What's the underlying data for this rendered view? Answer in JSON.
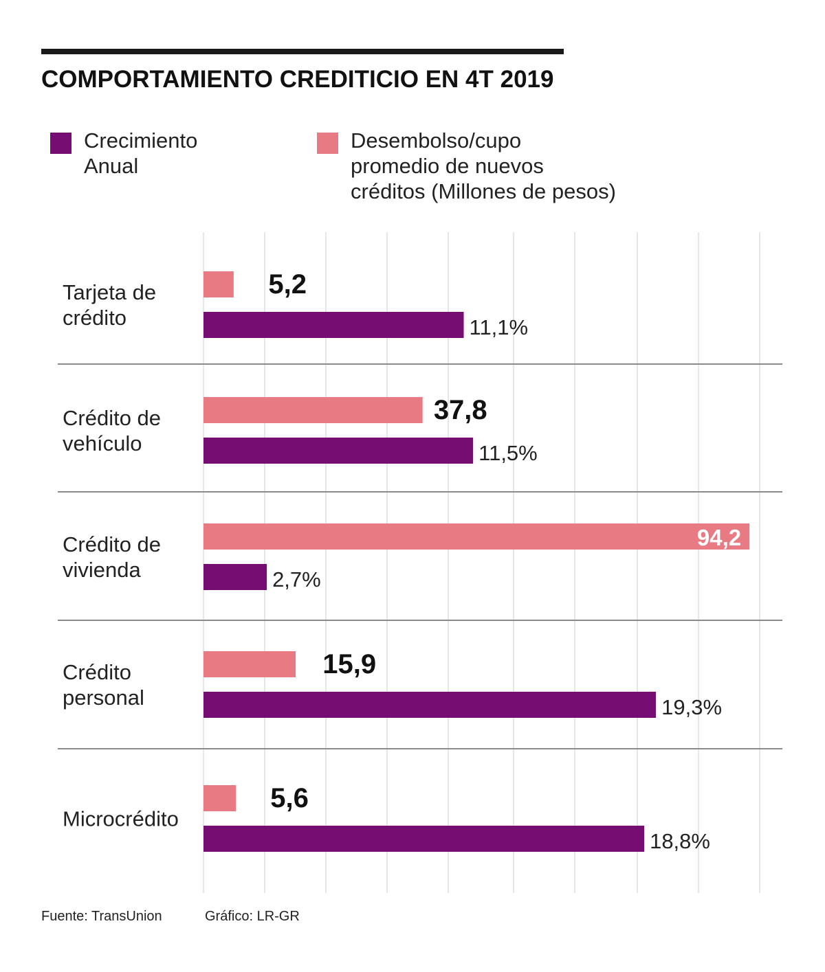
{
  "title": "COMPORTAMIENTO CREDITICIO EN 4T 2019",
  "legend": [
    {
      "label": "Crecimiento\nAnual",
      "color": "#760d72"
    },
    {
      "label": "Desembolso/cupo\npromedio de nuevos\ncréditos (Millones de pesos)",
      "color": "#e87a84"
    }
  ],
  "footer": {
    "source": "Fuente: TransUnion",
    "credit": "Gráfico: LR-GR"
  },
  "chart_data": {
    "type": "bar",
    "orientation": "horizontal",
    "categories": [
      "Tarjeta de\ncrédito",
      "Crédito de\nvehículo",
      "Crédito de\nvivienda",
      "Crédito\npersonal",
      "Microcrédito"
    ],
    "series": [
      {
        "name": "Desembolso/cupo promedio de nuevos créditos (Millones de pesos)",
        "color": "#e87a84",
        "values": [
          5.2,
          37.8,
          94.2,
          15.9,
          5.6
        ],
        "labels": [
          "5,2",
          "37,8",
          "94,2",
          "15,9",
          "5,6"
        ]
      },
      {
        "name": "Crecimiento Anual",
        "color": "#760d72",
        "values": [
          11.1,
          11.5,
          2.7,
          19.3,
          18.8
        ],
        "labels": [
          "11,1%",
          "11,5%",
          "2,7%",
          "19,3%",
          "18,8%"
        ]
      }
    ],
    "grid": true,
    "legend_position": "top"
  }
}
